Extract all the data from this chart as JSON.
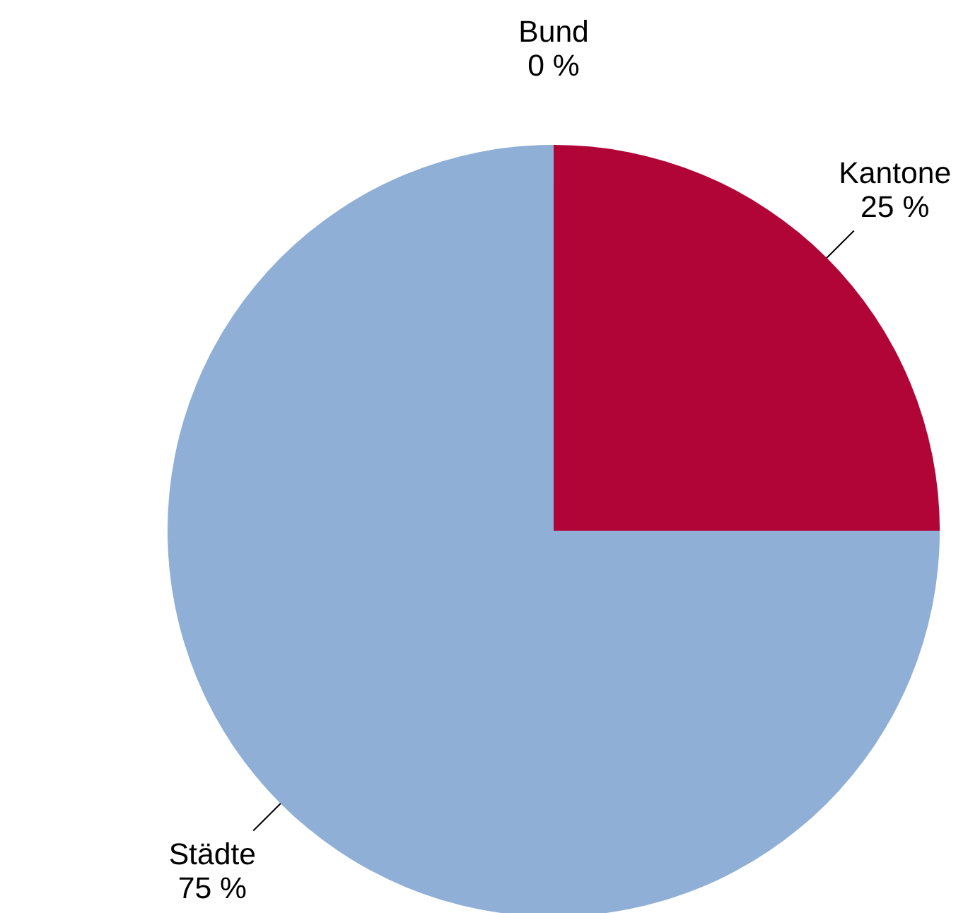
{
  "chart_data": {
    "type": "pie",
    "categories": [
      "Bund",
      "Kantone",
      "Städte"
    ],
    "values": [
      0,
      25,
      75
    ],
    "value_labels": [
      "0 %",
      "25 %",
      "75 %"
    ],
    "colors": [
      "#5b7fb0",
      "#b10537",
      "#8fafd6"
    ]
  }
}
